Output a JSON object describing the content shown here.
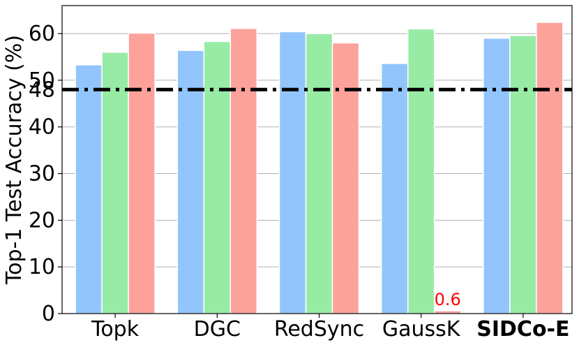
{
  "chart_data": {
    "type": "bar",
    "ylabel": "Top-1 Test Accuracy (%)",
    "xlabel": "",
    "ylim": [
      0,
      66
    ],
    "yticks": [
      0,
      10,
      20,
      30,
      40,
      50,
      60
    ],
    "grid": "horizontal",
    "categories": [
      "Topk",
      "DGC",
      "RedSync",
      "GaussK",
      "SIDCo-E"
    ],
    "highlighted_category": "SIDCo-E",
    "series": [
      {
        "values": [
          53.3,
          56.4,
          60.4,
          53.6,
          59.0
        ],
        "color": "#92c5fc"
      },
      {
        "values": [
          56.0,
          58.3,
          60.0,
          61.0,
          59.6
        ],
        "color": "#97eba5"
      },
      {
        "values": [
          60.1,
          61.1,
          58.0,
          0.6,
          62.4
        ],
        "color": "#fda19b"
      }
    ],
    "reference_line": {
      "value": 48,
      "label": "48",
      "style": "dash-dot",
      "color": "#000000",
      "label_color": "#ff0000"
    },
    "annotations": [
      {
        "text": "0.6",
        "category": "GaussK",
        "series_index": 2,
        "color": "#ff0000"
      }
    ]
  }
}
